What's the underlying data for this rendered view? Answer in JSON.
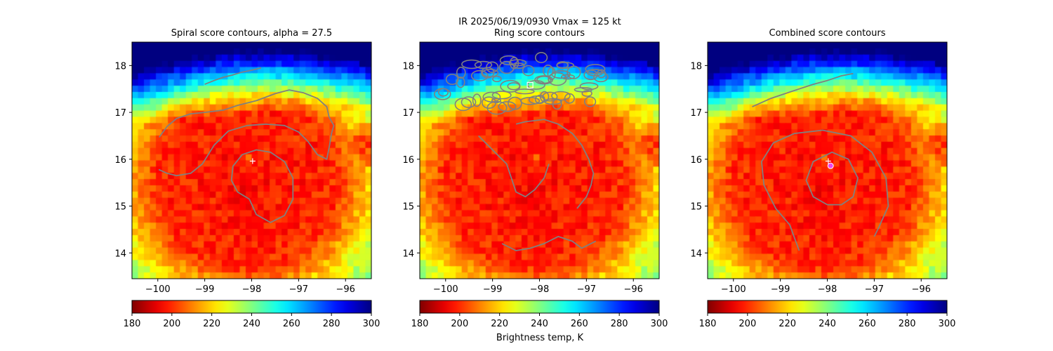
{
  "suptitle_line": "IR  2025/06/19/0930    Vmax = 125 kt",
  "colorbar_label": "Brightness temp, K",
  "chart_data": [
    {
      "type": "heatmap",
      "title": "Spiral score contours, alpha = 27.5",
      "xlim": [
        -100.55,
        -95.45
      ],
      "ylim": [
        13.45,
        18.5
      ],
      "xticks": [
        -100,
        -99,
        -98,
        -97,
        -96
      ],
      "xtick_labels": [
        "−100",
        "−99",
        "−98",
        "−97",
        "−96"
      ],
      "yticks": [
        14,
        15,
        16,
        17,
        18
      ],
      "ytick_labels": [
        "14",
        "15",
        "16",
        "17",
        "18"
      ],
      "colormap": "jet_r",
      "clim": [
        180,
        300
      ],
      "colorbar_ticks": [
        180,
        200,
        220,
        240,
        260,
        280,
        300
      ],
      "contour_color": "#808080",
      "markers": [
        {
          "symbol": "+",
          "color": "#ffffff",
          "x": -97.98,
          "y": 15.96
        }
      ],
      "contours": [
        [
          [
            -99.0,
            17.6
          ],
          [
            -98.8,
            17.68
          ],
          [
            -98.6,
            17.75
          ],
          [
            -98.4,
            17.8
          ],
          [
            -98.2,
            17.86
          ],
          [
            -98.0,
            17.9
          ],
          [
            -97.8,
            17.95
          ]
        ],
        [
          [
            -99.97,
            16.47
          ],
          [
            -99.8,
            16.7
          ],
          [
            -99.6,
            16.87
          ],
          [
            -99.3,
            16.97
          ],
          [
            -99.0,
            17.0
          ],
          [
            -98.6,
            17.05
          ],
          [
            -98.3,
            17.15
          ],
          [
            -97.9,
            17.25
          ],
          [
            -97.5,
            17.4
          ],
          [
            -97.2,
            17.48
          ],
          [
            -96.9,
            17.42
          ],
          [
            -96.6,
            17.3
          ],
          [
            -96.4,
            17.12
          ],
          [
            -96.35,
            16.9
          ],
          [
            -96.25,
            16.72
          ],
          [
            -96.3,
            16.55
          ],
          [
            -96.34,
            16.3
          ],
          [
            -96.4,
            16.0
          ],
          [
            -96.6,
            16.1
          ],
          [
            -96.8,
            16.38
          ],
          [
            -97.0,
            16.58
          ],
          [
            -97.3,
            16.72
          ],
          [
            -97.7,
            16.75
          ],
          [
            -98.1,
            16.72
          ],
          [
            -98.5,
            16.6
          ],
          [
            -98.8,
            16.3
          ],
          [
            -99.05,
            15.9
          ],
          [
            -99.3,
            15.7
          ],
          [
            -99.6,
            15.65
          ],
          [
            -99.8,
            15.7
          ],
          [
            -99.98,
            15.78
          ]
        ],
        [
          [
            -98.05,
            15.15
          ],
          [
            -98.3,
            15.3
          ],
          [
            -98.43,
            15.55
          ],
          [
            -98.4,
            15.85
          ],
          [
            -98.2,
            16.1
          ],
          [
            -97.9,
            16.2
          ],
          [
            -97.6,
            16.15
          ],
          [
            -97.3,
            15.95
          ],
          [
            -97.12,
            15.6
          ],
          [
            -97.12,
            15.15
          ],
          [
            -97.3,
            14.8
          ],
          [
            -97.6,
            14.65
          ],
          [
            -97.9,
            14.82
          ],
          [
            -98.05,
            15.15
          ]
        ]
      ]
    },
    {
      "type": "heatmap",
      "title": "Ring score contours",
      "xlim": [
        -100.55,
        -95.45
      ],
      "ylim": [
        13.45,
        18.5
      ],
      "xticks": [
        -100,
        -99,
        -98,
        -97,
        -96
      ],
      "xtick_labels": [
        "−100",
        "−99",
        "−98",
        "−97",
        "−96"
      ],
      "yticks": [
        14,
        15,
        16,
        17,
        18
      ],
      "ytick_labels": [
        "14",
        "15",
        "16",
        "17",
        "18"
      ],
      "colormap": "jet_r",
      "clim": [
        180,
        300
      ],
      "colorbar_ticks": [
        180,
        200,
        220,
        240,
        260,
        280,
        300
      ],
      "contour_color": "#808080",
      "markers": [
        {
          "symbol": "square",
          "color": "#ffffff",
          "x": -98.2,
          "y": 17.58
        }
      ],
      "contours": [
        [
          [
            -99.3,
            16.5
          ],
          [
            -99.1,
            16.3
          ],
          [
            -98.9,
            16.1
          ],
          [
            -98.7,
            15.9
          ],
          [
            -98.6,
            15.6
          ],
          [
            -98.5,
            15.3
          ],
          [
            -98.3,
            15.2
          ],
          [
            -98.1,
            15.35
          ],
          [
            -97.9,
            15.6
          ],
          [
            -97.8,
            15.9
          ]
        ],
        [
          [
            -98.5,
            16.75
          ],
          [
            -98.3,
            16.8
          ],
          [
            -97.9,
            16.85
          ],
          [
            -97.6,
            16.75
          ],
          [
            -97.3,
            16.55
          ],
          [
            -97.1,
            16.3
          ],
          [
            -96.95,
            16.0
          ],
          [
            -96.85,
            15.7
          ],
          [
            -96.9,
            15.45
          ],
          [
            -97.0,
            15.2
          ],
          [
            -97.2,
            14.95
          ]
        ],
        [
          [
            -98.8,
            14.2
          ],
          [
            -98.5,
            14.05
          ],
          [
            -98.2,
            14.1
          ],
          [
            -97.9,
            14.2
          ],
          [
            -97.6,
            14.35
          ],
          [
            -97.3,
            14.25
          ],
          [
            -97.1,
            14.1
          ],
          [
            -96.8,
            14.25
          ]
        ]
      ],
      "cloud_contour_region": {
        "lon": [
          -100.2,
          -96.5
        ],
        "lat": [
          17.0,
          18.2
        ]
      }
    },
    {
      "type": "heatmap",
      "title": "Combined score contours",
      "xlim": [
        -100.55,
        -95.45
      ],
      "ylim": [
        13.45,
        18.5
      ],
      "xticks": [
        -100,
        -99,
        -98,
        -97,
        -96
      ],
      "xtick_labels": [
        "−100",
        "−99",
        "−98",
        "−97",
        "−96"
      ],
      "yticks": [
        14,
        15,
        16,
        17,
        18
      ],
      "ytick_labels": [
        "14",
        "15",
        "16",
        "17",
        "18"
      ],
      "colormap": "jet_r",
      "clim": [
        180,
        300
      ],
      "colorbar_ticks": [
        180,
        200,
        220,
        240,
        260,
        280,
        300
      ],
      "contour_color": "#808080",
      "markers": [
        {
          "symbol": "+",
          "color": "#ffffff",
          "x": -97.98,
          "y": 15.96
        },
        {
          "symbol": "circle",
          "color": "#ee44ee",
          "x": -97.93,
          "y": 15.86
        }
      ],
      "contours": [
        [
          [
            -99.6,
            17.12
          ],
          [
            -99.2,
            17.3
          ],
          [
            -98.9,
            17.4
          ],
          [
            -98.6,
            17.5
          ],
          [
            -98.3,
            17.6
          ],
          [
            -98.0,
            17.68
          ],
          [
            -97.7,
            17.78
          ],
          [
            -97.45,
            17.83
          ]
        ],
        [
          [
            -98.6,
            14.05
          ],
          [
            -98.8,
            14.6
          ],
          [
            -99.1,
            14.95
          ],
          [
            -99.35,
            15.45
          ],
          [
            -99.4,
            15.95
          ],
          [
            -99.15,
            16.35
          ],
          [
            -98.7,
            16.55
          ],
          [
            -98.1,
            16.62
          ],
          [
            -97.5,
            16.5
          ],
          [
            -97.05,
            16.15
          ],
          [
            -96.75,
            15.6
          ],
          [
            -96.7,
            15.0
          ],
          [
            -96.9,
            14.55
          ],
          [
            -97.0,
            14.35
          ]
        ],
        [
          [
            -98.0,
            15.03
          ],
          [
            -98.3,
            15.2
          ],
          [
            -98.45,
            15.55
          ],
          [
            -98.3,
            15.95
          ],
          [
            -97.9,
            16.15
          ],
          [
            -97.55,
            16.0
          ],
          [
            -97.35,
            15.6
          ],
          [
            -97.45,
            15.2
          ],
          [
            -97.7,
            15.03
          ],
          [
            -98.0,
            15.03
          ]
        ]
      ]
    }
  ]
}
